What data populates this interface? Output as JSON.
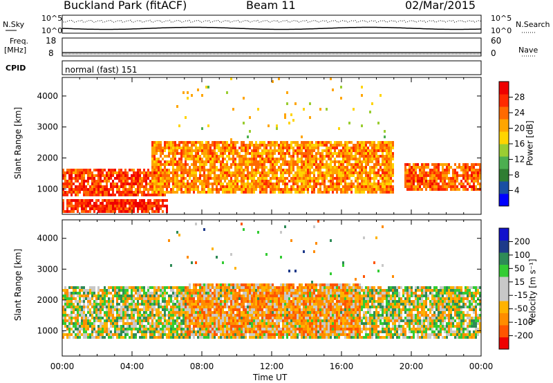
{
  "header": {
    "site": "Buckland Park (fitACF)",
    "beam": "Beam 11",
    "date": "02/Mar/2015"
  },
  "noise_panel": {
    "left_label": "N.Sky",
    "right_label": "N.Search",
    "left_ticks": [
      "10^5",
      "10^0"
    ],
    "right_ticks": [
      "10^5",
      "10^0"
    ]
  },
  "freq_panel": {
    "left_label_1": "Freq.",
    "left_label_2": "[MHz]",
    "right_label": "Nave",
    "left_ticks": [
      "18",
      "8"
    ],
    "right_ticks": [
      "60",
      "0"
    ]
  },
  "cpid": {
    "label": "CPID",
    "value": "normal (fast) 151"
  },
  "colors": {
    "power": [
      "#0000ff",
      "#1a4fa3",
      "#2e7d32",
      "#4caf50",
      "#9acd32",
      "#ffd400",
      "#ffa500",
      "#ff6a00",
      "#ff2a00",
      "#ee0000"
    ],
    "velocity": [
      "#ee0000",
      "#ff5500",
      "#ff8c00",
      "#ffb300",
      "#c8c8c8",
      "#c8c8c8",
      "#33cc33",
      "#2e8b57",
      "#1e3a8a",
      "#1111cc"
    ]
  },
  "chart_data": [
    {
      "type": "heatmap",
      "title": "",
      "xlabel": "Time UT",
      "ylabel": "Slant Range [km]",
      "xlim": [
        "00:00",
        "24:00"
      ],
      "ylim": [
        180,
        4600
      ],
      "y_ticks": [
        "1000",
        "2000",
        "3000",
        "4000"
      ],
      "colorbar_label": "Power [dB]",
      "colorbar_ticks": [
        "4",
        "8",
        "12",
        "16",
        "20",
        "24",
        "28"
      ],
      "colorbar_range": [
        0,
        32
      ],
      "features": [
        {
          "desc": "main echo band",
          "t_start": 0.0,
          "t_end": 6.0,
          "range_km": [
            800,
            1700
          ],
          "power_db": 26
        },
        {
          "desc": "lower echo band",
          "t_start": 0.0,
          "t_end": 6.0,
          "range_km": [
            300,
            700
          ],
          "power_db": 28
        },
        {
          "desc": "broad daytime echoes",
          "t_start": 5.0,
          "t_end": 19.0,
          "range_km": [
            900,
            2600
          ],
          "power_db": 22
        },
        {
          "desc": "evening echo band",
          "t_start": 19.5,
          "t_end": 24.0,
          "range_km": [
            1000,
            1900
          ],
          "power_db": 25
        }
      ]
    },
    {
      "type": "heatmap",
      "title": "",
      "xlabel": "Time UT",
      "ylabel": "Slant Range [km]",
      "xlim": [
        "00:00",
        "24:00"
      ],
      "ylim": [
        180,
        4600
      ],
      "y_ticks": [
        "1000",
        "2000",
        "3000",
        "4000"
      ],
      "colorbar_label": "Velocity [m s⁻¹]",
      "colorbar_ticks": [
        "200",
        "100",
        "50",
        "15",
        "-15",
        "-50",
        "-100",
        "-200"
      ],
      "colorbar_range": [
        -250,
        250
      ],
      "features": [
        {
          "desc": "ground scatter",
          "t_start": 0.0,
          "t_end": 24.0,
          "range_km": [
            800,
            2500
          ],
          "velocity": 0
        },
        {
          "desc": "negative velocity echoes",
          "t_start": 7.0,
          "t_end": 17.0,
          "range_km": [
            900,
            2600
          ],
          "velocity": -60
        }
      ]
    }
  ],
  "x_ticks": [
    "00:00",
    "04:00",
    "08:00",
    "12:00",
    "16:00",
    "20:00",
    "00:00"
  ],
  "xlabel": "Time UT"
}
